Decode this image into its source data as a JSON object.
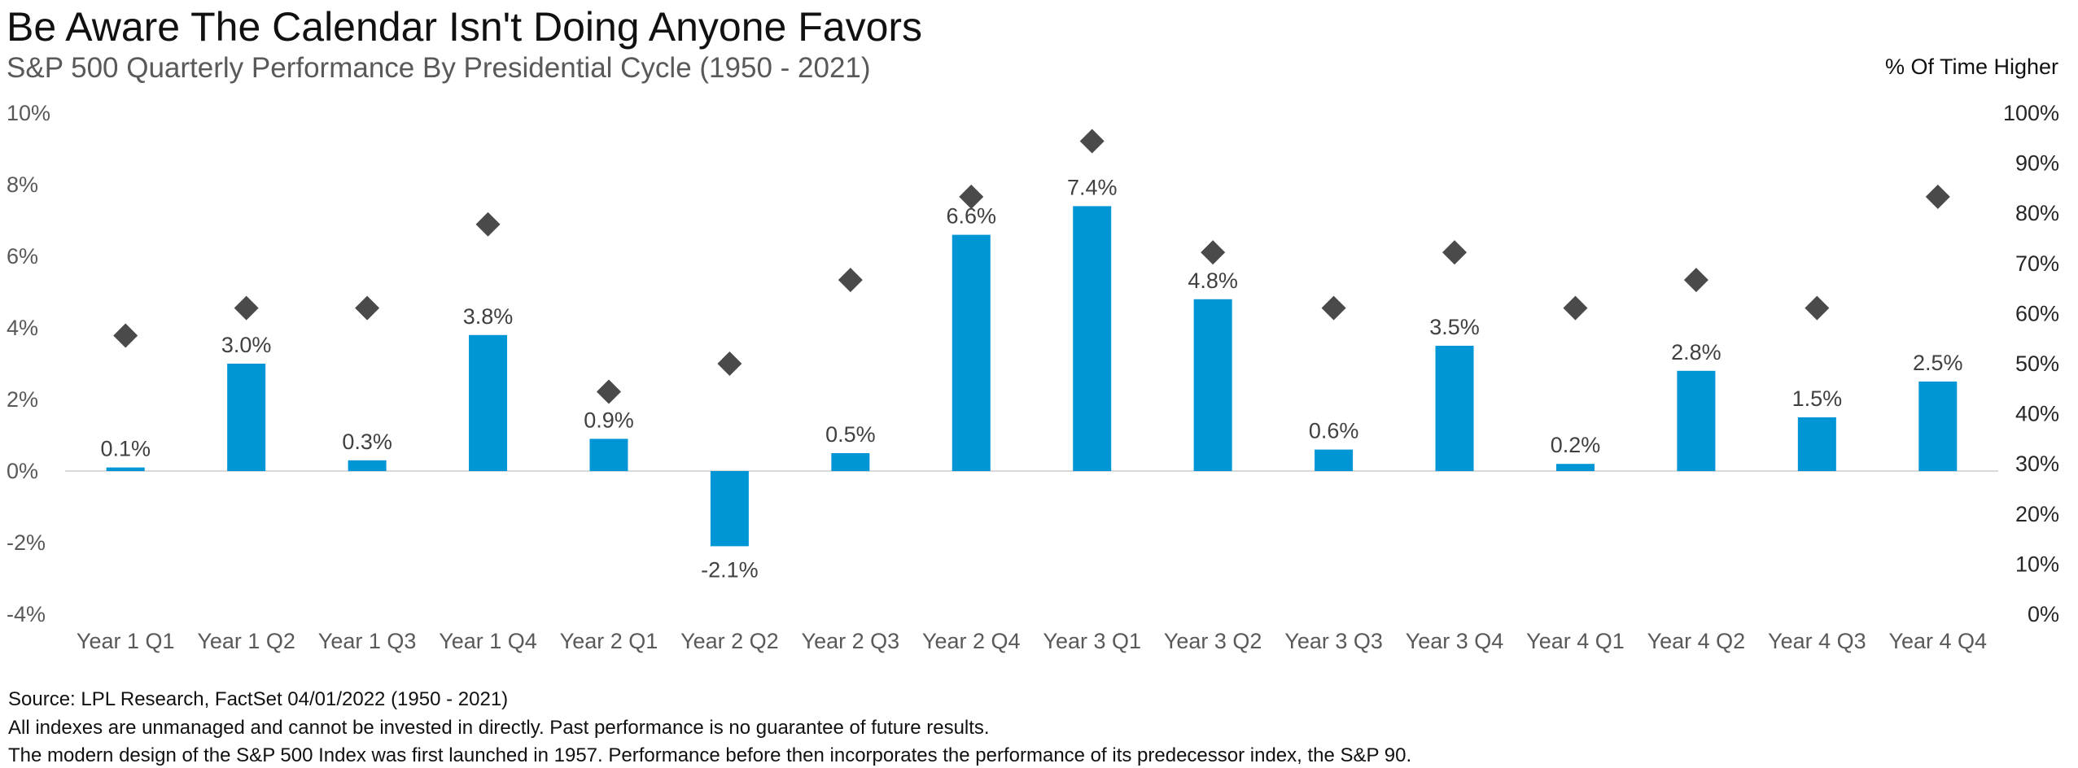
{
  "title": "Be Aware The Calendar Isn't Doing Anyone Favors",
  "subtitle": "S&P 500 Quarterly Performance By Presidential Cycle (1950 - 2021)",
  "right_axis_title": "% Of Time Higher",
  "footer": {
    "source": "Source: LPL Research, FactSet 04/01/2022 (1950 - 2021)",
    "disclaimer": "All indexes are unmanaged and cannot be invested in directly. Past performance is no guarantee of future results.",
    "note": "The modern design of the S&P 500 Index was first launched in 1957. Performance before then incorporates the performance of its  predecessor index, the S&P 90."
  },
  "chart_data": {
    "type": "bar",
    "categories": [
      "Year 1 Q1",
      "Year 1 Q2",
      "Year 1 Q3",
      "Year 1 Q4",
      "Year 2 Q1",
      "Year 2 Q2",
      "Year 2 Q3",
      "Year 2 Q4",
      "Year 3 Q1",
      "Year 3 Q2",
      "Year 3 Q3",
      "Year 3 Q4",
      "Year 4 Q1",
      "Year 4 Q2",
      "Year 4 Q3",
      "Year 4 Q4"
    ],
    "series": [
      {
        "type": "bar",
        "axis": "left",
        "color": "#0096D6",
        "values": [
          0.1,
          3.0,
          0.3,
          3.8,
          0.9,
          -2.1,
          0.5,
          6.6,
          7.4,
          4.8,
          0.6,
          3.5,
          0.2,
          2.8,
          1.5,
          2.5
        ],
        "labels": [
          "0.1%",
          "3.0%",
          "0.3%",
          "3.8%",
          "0.9%",
          "-2.1%",
          "0.5%",
          "6.6%",
          "7.4%",
          "4.8%",
          "0.6%",
          "3.5%",
          "0.2%",
          "2.8%",
          "1.5%",
          "2.5%"
        ]
      },
      {
        "type": "scatter",
        "axis": "right",
        "marker": "diamond",
        "color": "#4A4A4A",
        "values": [
          55.6,
          61.1,
          61.1,
          77.8,
          44.4,
          50.0,
          66.7,
          83.3,
          94.4,
          72.2,
          61.1,
          72.2,
          61.1,
          66.7,
          61.1,
          83.3
        ]
      }
    ],
    "left_axis": {
      "range": [
        -4,
        10
      ],
      "ticks": [
        "-4%",
        "-2%",
        "0%",
        "2%",
        "4%",
        "6%",
        "8%",
        "10%"
      ],
      "tick_values": [
        -4,
        -2,
        0,
        2,
        4,
        6,
        8,
        10
      ]
    },
    "right_axis": {
      "range": [
        0,
        100
      ],
      "ticks": [
        "0%",
        "10%",
        "20%",
        "30%",
        "40%",
        "50%",
        "60%",
        "70%",
        "80%",
        "90%",
        "100%"
      ],
      "tick_values": [
        0,
        10,
        20,
        30,
        40,
        50,
        60,
        70,
        80,
        90,
        100
      ]
    },
    "grid": false,
    "legend": "none"
  }
}
